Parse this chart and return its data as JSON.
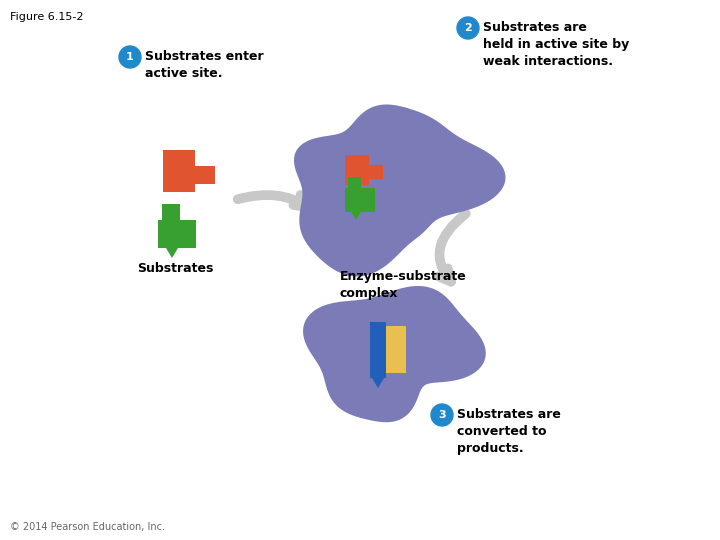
{
  "title": "Figure 6.15-2",
  "background_color": "#ffffff",
  "fig_width": 7.2,
  "fig_height": 5.4,
  "dpi": 100,
  "enzyme_color": "#7b7bb8",
  "substrate_red": "#e05530",
  "substrate_green": "#38a030",
  "product_blue": "#2060b8",
  "product_yellow": "#e8c050",
  "circle_color": "#2288cc",
  "arrow_color": "#c8c8c8",
  "step1_text": "Substrates enter\nactive site.",
  "step2_text": "Substrates are\nheld in active site by\nweak interactions.",
  "step3_text": "Substrates are\nconverted to\nproducts.",
  "substrates_label": "Substrates",
  "complex_label": "Enzyme-substrate\ncomplex",
  "copyright": "© 2014 Pearson Education, Inc."
}
